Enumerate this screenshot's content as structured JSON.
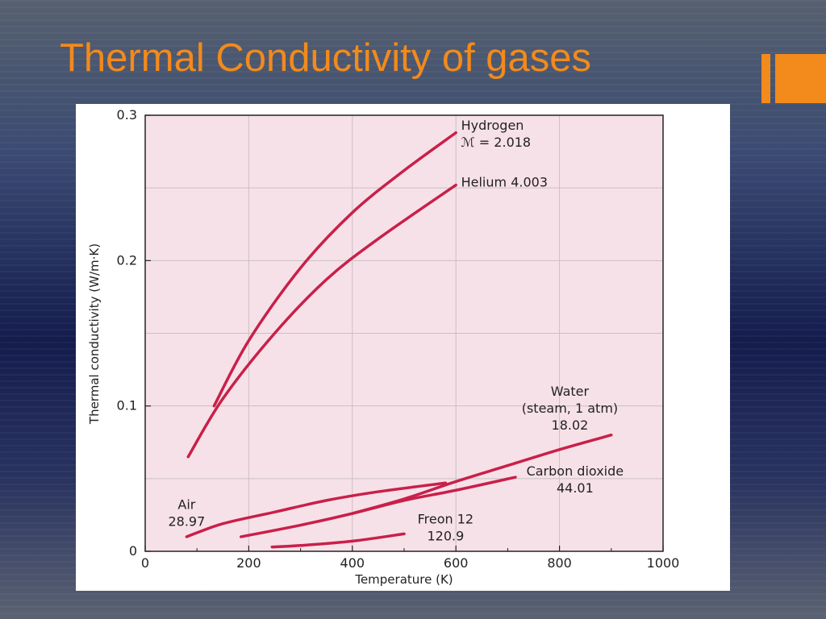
{
  "slide": {
    "title": "Thermal Conductivity of gases",
    "accent_color": "#f28a1c"
  },
  "chart_data": {
    "type": "line",
    "xlabel": "Temperature (K)",
    "ylabel": "Thermal conductivity (W/m·K)",
    "xlim": [
      0,
      1000
    ],
    "ylim": [
      0,
      0.3
    ],
    "x_ticks": [
      "0",
      "200",
      "400",
      "600",
      "800",
      "1000"
    ],
    "y_ticks": [
      "0",
      "0.1",
      "0.2",
      "0.3"
    ],
    "grid": true,
    "plot_background": "#f7e1e8",
    "line_color": "#c8204a",
    "series": [
      {
        "name": "Hydrogen",
        "label_lines": [
          "Hydrogen",
          "ℳ = 2.018"
        ],
        "points": [
          [
            133,
            0.1
          ],
          [
            200,
            0.145
          ],
          [
            300,
            0.195
          ],
          [
            400,
            0.233
          ],
          [
            500,
            0.262
          ],
          [
            600,
            0.288
          ]
        ]
      },
      {
        "name": "Helium",
        "label_lines": [
          "Helium 4.003"
        ],
        "points": [
          [
            83,
            0.065
          ],
          [
            150,
            0.105
          ],
          [
            250,
            0.15
          ],
          [
            350,
            0.187
          ],
          [
            450,
            0.215
          ],
          [
            600,
            0.252
          ]
        ]
      },
      {
        "name": "Water",
        "label_lines": [
          "Water",
          "(steam, 1 atm)",
          "18.02"
        ],
        "points": [
          [
            400,
            0.026
          ],
          [
            500,
            0.036
          ],
          [
            600,
            0.048
          ],
          [
            700,
            0.059
          ],
          [
            800,
            0.07
          ],
          [
            900,
            0.08
          ]
        ]
      },
      {
        "name": "Carbon dioxide",
        "label_lines": [
          "Carbon dioxide",
          "44.01"
        ],
        "points": [
          [
            185,
            0.01
          ],
          [
            300,
            0.018
          ],
          [
            400,
            0.026
          ],
          [
            500,
            0.035
          ],
          [
            600,
            0.042
          ],
          [
            715,
            0.051
          ]
        ]
      },
      {
        "name": "Air",
        "label_lines": [
          "Air",
          "28.97"
        ],
        "points": [
          [
            80,
            0.01
          ],
          [
            150,
            0.019
          ],
          [
            250,
            0.027
          ],
          [
            350,
            0.035
          ],
          [
            450,
            0.041
          ],
          [
            580,
            0.047
          ]
        ]
      },
      {
        "name": "Freon 12",
        "label_lines": [
          "Freon 12",
          "120.9"
        ],
        "points": [
          [
            245,
            0.003
          ],
          [
            300,
            0.004
          ],
          [
            400,
            0.007
          ],
          [
            500,
            0.012
          ]
        ]
      }
    ]
  }
}
